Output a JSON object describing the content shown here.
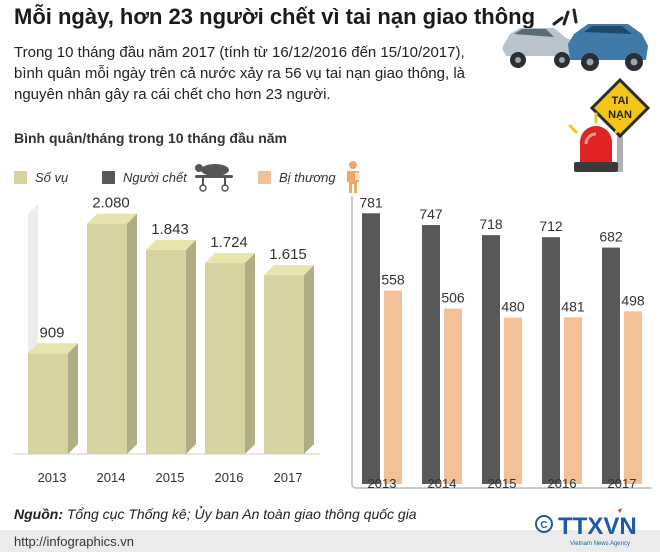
{
  "header": {
    "title": "Mỗi ngày, hơn 23 người chết vì tai nạn giao thông",
    "intro": "Trong 10 tháng đầu năm 2017 (tính từ 16/12/2016 đến 15/10/2017), bình quân mỗi ngày trên cả nước xảy ra 56 vụ tai nạn giao thông, là nguyên nhân gây ra cái chết cho hơn 23 người.",
    "subtitle": "Bình quân/tháng trong 10 tháng đầu năm"
  },
  "legend": {
    "items": [
      {
        "label": "Số vụ",
        "color": "#d7d3a1",
        "icon": "none"
      },
      {
        "label": "Người chết",
        "color": "#58585a",
        "icon": "stretcher-icon"
      },
      {
        "label": "Bị thương",
        "color": "#f2c197",
        "icon": "injured-person-icon"
      }
    ]
  },
  "illustration": {
    "sign_line1": "TAI",
    "sign_line2": "NẠN",
    "icons": [
      "car-crash-icon",
      "accident-sign-icon",
      "emergency-siren-icon"
    ]
  },
  "chart_data": [
    {
      "type": "bar",
      "categories": [
        "2013",
        "2014",
        "2015",
        "2016",
        "2017"
      ],
      "series": [
        {
          "name": "Số vụ",
          "color": "#d7d3a1",
          "values": [
            909,
            2080,
            1843,
            1724,
            1615
          ],
          "labels": [
            "909",
            "2.080",
            "1.843",
            "1.724",
            "1.615"
          ]
        }
      ],
      "ylim": [
        0,
        2400
      ],
      "grid": false,
      "style": "3d-bars"
    },
    {
      "type": "bar",
      "categories": [
        "2013",
        "2014",
        "2015",
        "2016",
        "2017"
      ],
      "series": [
        {
          "name": "Người chết",
          "color": "#58585a",
          "values": [
            781,
            747,
            718,
            712,
            682
          ],
          "labels": [
            "781",
            "747",
            "718",
            "712",
            "682"
          ]
        },
        {
          "name": "Bị thương",
          "color": "#f2c197",
          "values": [
            558,
            506,
            480,
            481,
            498
          ],
          "labels": [
            "558",
            "506",
            "480",
            "481",
            "498"
          ]
        }
      ],
      "ylim": [
        0,
        940
      ],
      "grid": false
    }
  ],
  "footer": {
    "source_label": "Nguồn:",
    "source_text": "Tổng cục Thống kê; Ủy ban An toàn giao thông quốc gia",
    "url": "http://infographics.vn",
    "logo_text": "TTXVN",
    "logo_sub": "Vietnam News Agency",
    "logo_icon": "copyright-icon"
  }
}
